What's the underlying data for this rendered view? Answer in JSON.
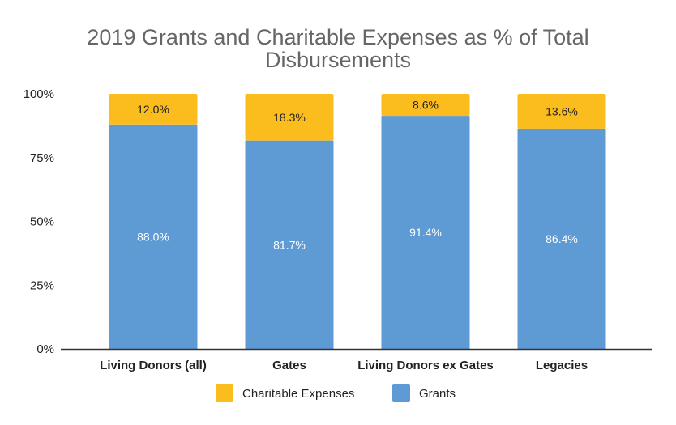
{
  "chart_data": {
    "type": "bar",
    "stacked": true,
    "title_lines": [
      "2019 Grants and Charitable Expenses as % of Total",
      "Disbursements"
    ],
    "categories": [
      "Living Donors (all)",
      "Gates",
      "Living Donors ex Gates",
      "Legacies"
    ],
    "series": [
      {
        "name": "Grants",
        "color": "#5e9bd4",
        "values": [
          88.0,
          81.7,
          91.4,
          86.4
        ],
        "labels": [
          "88.0%",
          "81.7%",
          "91.4%",
          "86.4%"
        ]
      },
      {
        "name": "Charitable Expenses",
        "color": "#fbbc1e",
        "values": [
          12.0,
          18.3,
          8.6,
          13.6
        ],
        "labels": [
          "12.0%",
          "18.3%",
          "8.6%",
          "13.6%"
        ]
      }
    ],
    "legend_order": [
      "Charitable Expenses",
      "Grants"
    ],
    "y_ticks": [
      0,
      25,
      50,
      75,
      100
    ],
    "y_tick_labels": [
      "0%",
      "25%",
      "50%",
      "75%",
      "100%"
    ],
    "ylim": [
      0,
      100
    ],
    "xlabel": "",
    "ylabel": "",
    "legend_position": "bottom",
    "grid": false
  }
}
